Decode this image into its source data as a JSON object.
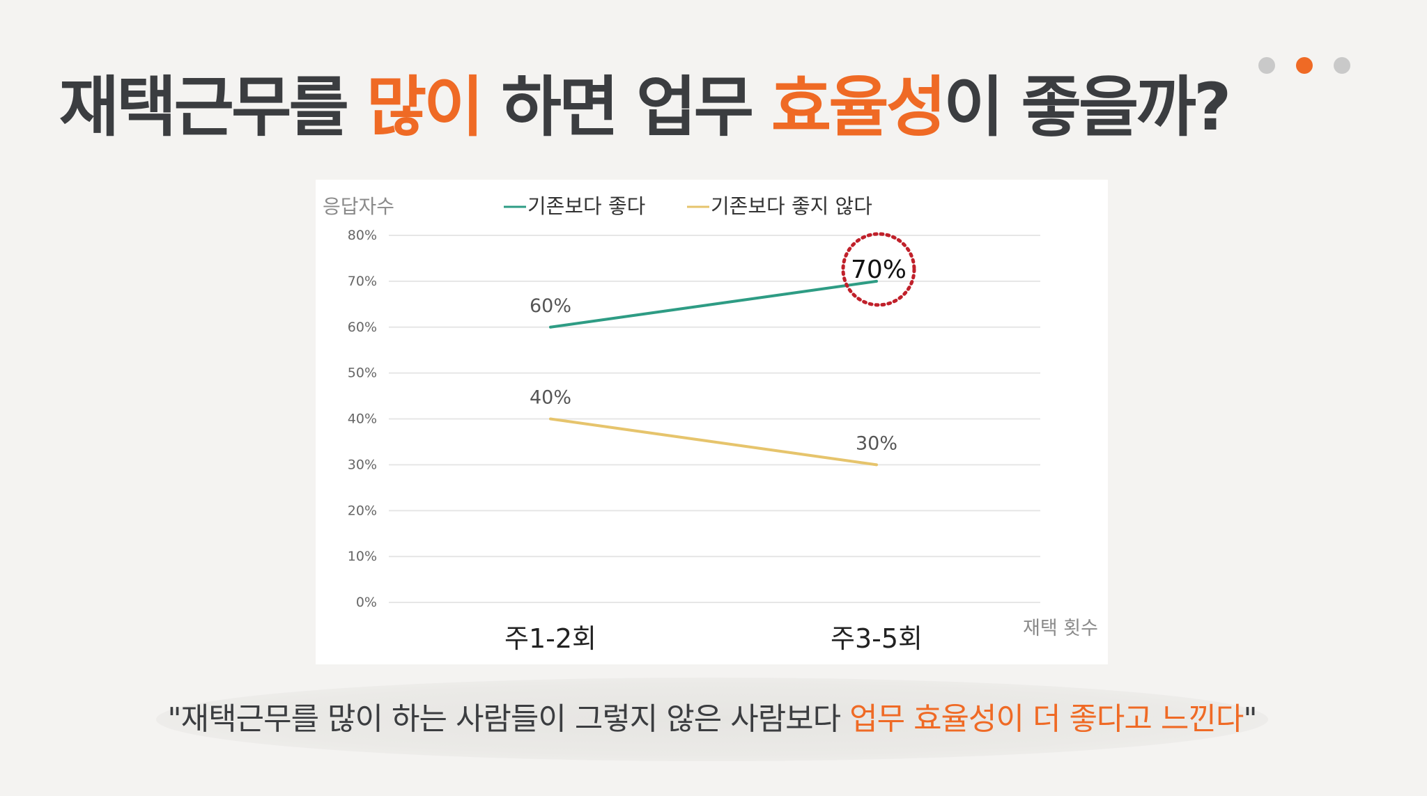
{
  "title": {
    "part1": "재택근무를 ",
    "highlight1": "많이",
    "part2": " 하면 업무 ",
    "highlight2": "효율성",
    "part3": "이 좋을까?"
  },
  "pagination": {
    "count": 3,
    "active_index": 1
  },
  "colors": {
    "accent": "#ef6a25",
    "series_good": "#2e9c84",
    "series_bad": "#e6c46c",
    "circle": "#c0202a"
  },
  "chart_data": {
    "type": "line",
    "ylabel": "응답자수",
    "xlabel": "재택 횟수",
    "categories": [
      "주1-2회",
      "주3-5회"
    ],
    "y_ticks": [
      "80%",
      "70%",
      "60%",
      "50%",
      "40%",
      "30%",
      "20%",
      "10%",
      "0%"
    ],
    "ylim": [
      0,
      80
    ],
    "grid": true,
    "legend_position": "top",
    "series": [
      {
        "name": "기존보다 좋다",
        "values": [
          60,
          70
        ],
        "labels": [
          "60%",
          "70%"
        ]
      },
      {
        "name": "기존보다 좋지 않다",
        "values": [
          40,
          30
        ],
        "labels": [
          "40%",
          "30%"
        ]
      }
    ],
    "annotation": "circle around 70%"
  },
  "quote": {
    "text": "\"재택근무를 많이 하는 사람들이 그렇지 않은 사람보다 ",
    "highlight": "업무 효율성이 더 좋다고 느낀다",
    "end": "\""
  }
}
